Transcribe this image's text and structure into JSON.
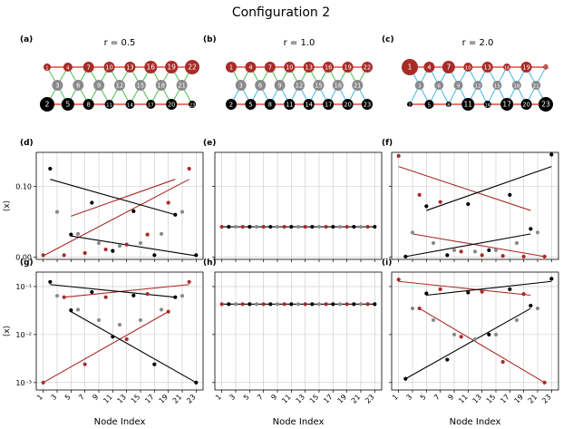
{
  "figure": {
    "title": "Configuration 2",
    "panel_labels": [
      "(a)",
      "(b)",
      "(c)",
      "(d)",
      "(e)",
      "(f)",
      "(g)",
      "(h)",
      "(i)"
    ],
    "ratios": [
      "r = 0.5",
      "r = 1.0",
      "r = 2.0"
    ],
    "colors": {
      "top": "#a82b27",
      "mid": "#8a8a8a",
      "bottom": "#000000",
      "edge_red": "#e84a3d",
      "edge_green": "#4cc24c",
      "edge_blue": "#43b8e8",
      "grid": "#c8c8c8"
    }
  },
  "networks": {
    "top_nodes": [
      1,
      4,
      7,
      10,
      13,
      16,
      19,
      22
    ],
    "mid_nodes": [
      3,
      6,
      9,
      12,
      15,
      18,
      21
    ],
    "bottom_nodes": [
      2,
      5,
      8,
      11,
      14,
      17,
      20,
      23
    ]
  },
  "chart_data": [
    {
      "panel": "d",
      "type": "scatter",
      "scale": "linear",
      "ylabel": "⟨x⟩",
      "ylim": [
        -0.003,
        0.148
      ],
      "yticks": [
        0.0,
        0.1
      ],
      "ytick_labels": [
        "0.00",
        "0.10"
      ],
      "series": [
        {
          "name": "top",
          "color": "#a82b27",
          "x": [
            1,
            4,
            7,
            10,
            13,
            16,
            19,
            22
          ],
          "y": [
            0.003,
            0.003,
            0.006,
            0.011,
            0.018,
            0.032,
            0.077,
            0.125
          ]
        },
        {
          "name": "mid",
          "color": "#8a8a8a",
          "x": [
            3,
            6,
            9,
            12,
            15,
            18,
            21
          ],
          "y": [
            0.064,
            0.033,
            0.02,
            0.016,
            0.02,
            0.033,
            0.064
          ]
        },
        {
          "name": "bottom",
          "color": "#000000",
          "x": [
            2,
            5,
            8,
            11,
            14,
            17,
            20,
            23
          ],
          "y": [
            0.125,
            0.032,
            0.077,
            0.009,
            0.065,
            0.003,
            0.06,
            0.003
          ]
        }
      ],
      "fits": [
        {
          "color": "#a82b27",
          "x": [
            1,
            22
          ],
          "y": [
            0.002,
            0.11
          ]
        },
        {
          "color": "#a82b27",
          "x": [
            5,
            20
          ],
          "y": [
            0.058,
            0.11
          ]
        },
        {
          "color": "#000000",
          "x": [
            2,
            20
          ],
          "y": [
            0.11,
            0.06
          ]
        },
        {
          "color": "#000000",
          "x": [
            5,
            23
          ],
          "y": [
            0.03,
            0.002
          ]
        }
      ]
    },
    {
      "panel": "e",
      "type": "scatter",
      "scale": "linear",
      "ylim": [
        -0.003,
        0.148
      ],
      "yticks": [
        0.0,
        0.1
      ],
      "ytick_labels": [
        "",
        ""
      ],
      "series": [
        {
          "name": "top",
          "color": "#a82b27",
          "x": [
            1,
            4,
            7,
            10,
            13,
            16,
            19,
            22
          ],
          "y": [
            0.043,
            0.043,
            0.043,
            0.043,
            0.043,
            0.043,
            0.043,
            0.043
          ]
        },
        {
          "name": "mid",
          "color": "#8a8a8a",
          "x": [
            3,
            6,
            9,
            12,
            15,
            18,
            21
          ],
          "y": [
            0.043,
            0.043,
            0.043,
            0.043,
            0.043,
            0.043,
            0.043
          ]
        },
        {
          "name": "bottom",
          "color": "#000000",
          "x": [
            2,
            5,
            8,
            11,
            14,
            17,
            20,
            23
          ],
          "y": [
            0.043,
            0.043,
            0.043,
            0.043,
            0.043,
            0.043,
            0.043,
            0.043
          ]
        }
      ],
      "fits": [
        {
          "color": "#000000",
          "x": [
            1,
            23
          ],
          "y": [
            0.043,
            0.043
          ]
        }
      ]
    },
    {
      "panel": "f",
      "type": "scatter",
      "scale": "linear",
      "ylim": [
        -0.003,
        0.148
      ],
      "yticks": [
        0.0,
        0.1
      ],
      "ytick_labels": [
        "",
        ""
      ],
      "series": [
        {
          "name": "top",
          "color": "#a82b27",
          "x": [
            1,
            4,
            7,
            10,
            13,
            16,
            19,
            22
          ],
          "y": [
            0.143,
            0.088,
            0.078,
            0.008,
            0.003,
            0.002,
            0.001,
            0.001
          ]
        },
        {
          "name": "mid",
          "color": "#8a8a8a",
          "x": [
            3,
            6,
            9,
            12,
            15,
            18,
            21
          ],
          "y": [
            0.035,
            0.02,
            0.01,
            0.008,
            0.01,
            0.02,
            0.035
          ]
        },
        {
          "name": "bottom",
          "color": "#000000",
          "x": [
            2,
            5,
            8,
            11,
            14,
            17,
            20,
            23
          ],
          "y": [
            0.001,
            0.072,
            0.003,
            0.075,
            0.01,
            0.088,
            0.04,
            0.145
          ]
        }
      ],
      "fits": [
        {
          "color": "#a82b27",
          "x": [
            1,
            20
          ],
          "y": [
            0.128,
            0.066
          ]
        },
        {
          "color": "#a82b27",
          "x": [
            3,
            22
          ],
          "y": [
            0.033,
            0.001
          ]
        },
        {
          "color": "#000000",
          "x": [
            5,
            23
          ],
          "y": [
            0.066,
            0.128
          ]
        },
        {
          "color": "#000000",
          "x": [
            2,
            20
          ],
          "y": [
            0.001,
            0.033
          ]
        }
      ]
    },
    {
      "panel": "g",
      "type": "scatter",
      "scale": "log",
      "ylabel": "⟨x⟩",
      "ylim": [
        0.0007,
        0.2
      ],
      "yticks": [
        0.001,
        0.01,
        0.1
      ],
      "ytick_labels": [
        "10⁻³",
        "10⁻²",
        "10⁻¹"
      ],
      "series": [
        {
          "name": "top",
          "color": "#a82b27",
          "x": [
            1,
            4,
            7,
            10,
            13,
            16,
            19,
            22
          ],
          "y": [
            0.001,
            0.06,
            0.0024,
            0.06,
            0.008,
            0.07,
            0.03,
            0.125
          ]
        },
        {
          "name": "mid",
          "color": "#8a8a8a",
          "x": [
            3,
            6,
            9,
            12,
            15,
            18,
            21
          ],
          "y": [
            0.064,
            0.033,
            0.02,
            0.016,
            0.02,
            0.033,
            0.064
          ]
        },
        {
          "name": "bottom",
          "color": "#000000",
          "x": [
            2,
            5,
            8,
            11,
            14,
            17,
            20,
            23
          ],
          "y": [
            0.125,
            0.032,
            0.077,
            0.009,
            0.065,
            0.0024,
            0.06,
            0.001
          ]
        }
      ],
      "fits": [
        {
          "color": "#a82b27",
          "x": [
            1,
            19
          ],
          "y": [
            0.001,
            0.03
          ]
        },
        {
          "color": "#a82b27",
          "x": [
            4,
            22
          ],
          "y": [
            0.06,
            0.11
          ]
        },
        {
          "color": "#000000",
          "x": [
            2,
            20
          ],
          "y": [
            0.11,
            0.06
          ]
        },
        {
          "color": "#000000",
          "x": [
            5,
            23
          ],
          "y": [
            0.03,
            0.001
          ]
        }
      ]
    },
    {
      "panel": "h",
      "type": "scatter",
      "scale": "log",
      "ylim": [
        0.0007,
        0.2
      ],
      "yticks": [
        0.001,
        0.01,
        0.1
      ],
      "ytick_labels": [
        "",
        "",
        ""
      ],
      "series": [
        {
          "name": "top",
          "color": "#a82b27",
          "x": [
            1,
            4,
            7,
            10,
            13,
            16,
            19,
            22
          ],
          "y": [
            0.043,
            0.043,
            0.043,
            0.043,
            0.043,
            0.043,
            0.043,
            0.043
          ]
        },
        {
          "name": "mid",
          "color": "#8a8a8a",
          "x": [
            3,
            6,
            9,
            12,
            15,
            18,
            21
          ],
          "y": [
            0.043,
            0.043,
            0.043,
            0.043,
            0.043,
            0.043,
            0.043
          ]
        },
        {
          "name": "bottom",
          "color": "#000000",
          "x": [
            2,
            5,
            8,
            11,
            14,
            17,
            20,
            23
          ],
          "y": [
            0.043,
            0.043,
            0.043,
            0.043,
            0.043,
            0.043,
            0.043,
            0.043
          ]
        }
      ],
      "fits": [
        {
          "color": "#000000",
          "x": [
            1,
            23
          ],
          "y": [
            0.043,
            0.043
          ]
        }
      ]
    },
    {
      "panel": "i",
      "type": "scatter",
      "scale": "log",
      "ylim": [
        0.0007,
        0.2
      ],
      "yticks": [
        0.001,
        0.01,
        0.1
      ],
      "ytick_labels": [
        "",
        "",
        ""
      ],
      "series": [
        {
          "name": "top",
          "color": "#a82b27",
          "x": [
            1,
            4,
            7,
            10,
            13,
            16,
            19,
            22
          ],
          "y": [
            0.14,
            0.035,
            0.088,
            0.009,
            0.078,
            0.0027,
            0.07,
            0.001
          ]
        },
        {
          "name": "mid",
          "color": "#8a8a8a",
          "x": [
            3,
            6,
            9,
            12,
            15,
            18,
            21
          ],
          "y": [
            0.035,
            0.02,
            0.01,
            0.008,
            0.01,
            0.02,
            0.035
          ]
        },
        {
          "name": "bottom",
          "color": "#000000",
          "x": [
            2,
            5,
            8,
            11,
            14,
            17,
            20,
            23
          ],
          "y": [
            0.0012,
            0.072,
            0.003,
            0.075,
            0.01,
            0.088,
            0.04,
            0.145
          ]
        }
      ],
      "fits": [
        {
          "color": "#a82b27",
          "x": [
            1,
            20
          ],
          "y": [
            0.128,
            0.066
          ]
        },
        {
          "color": "#a82b27",
          "x": [
            4,
            22
          ],
          "y": [
            0.035,
            0.001
          ]
        },
        {
          "color": "#000000",
          "x": [
            5,
            23
          ],
          "y": [
            0.066,
            0.128
          ]
        },
        {
          "color": "#000000",
          "x": [
            2,
            20
          ],
          "y": [
            0.0012,
            0.035
          ]
        }
      ]
    }
  ],
  "axes": {
    "xlabel": "Node Index",
    "xticks": [
      1,
      3,
      5,
      7,
      9,
      11,
      13,
      15,
      17,
      19,
      21,
      23
    ],
    "xlim": [
      0,
      24
    ]
  }
}
